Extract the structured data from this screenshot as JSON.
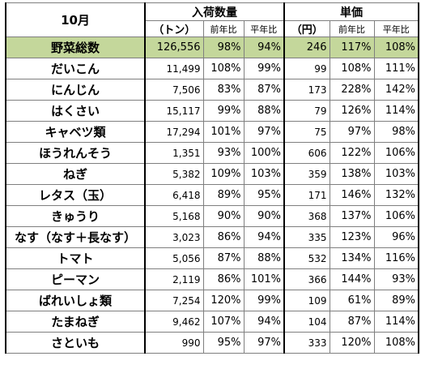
{
  "header": {
    "month": "10月",
    "arrivals_label": "入荷数量",
    "arrivals_unit": "（トン）",
    "price_label": "単価",
    "price_unit": "（円）",
    "yoy_label": "前年比",
    "avg_label": "平年比"
  },
  "rows": [
    {
      "name": "野菜総数",
      "qty": "126,556",
      "qty_yoy": "98%",
      "qty_avg": "94%",
      "price": "246",
      "price_yoy": "117%",
      "price_avg": "108%"
    },
    {
      "name": "だいこん",
      "qty": "11,499",
      "qty_yoy": "108%",
      "qty_avg": "99%",
      "price": "99",
      "price_yoy": "108%",
      "price_avg": "111%"
    },
    {
      "name": "にんじん",
      "qty": "7,506",
      "qty_yoy": "83%",
      "qty_avg": "87%",
      "price": "173",
      "price_yoy": "228%",
      "price_avg": "142%"
    },
    {
      "name": "はくさい",
      "qty": "15,117",
      "qty_yoy": "99%",
      "qty_avg": "88%",
      "price": "79",
      "price_yoy": "126%",
      "price_avg": "114%"
    },
    {
      "name": "キャベツ類",
      "qty": "17,294",
      "qty_yoy": "101%",
      "qty_avg": "97%",
      "price": "75",
      "price_yoy": "97%",
      "price_avg": "98%"
    },
    {
      "name": "ほうれんそう",
      "qty": "1,351",
      "qty_yoy": "93%",
      "qty_avg": "100%",
      "price": "606",
      "price_yoy": "122%",
      "price_avg": "106%"
    },
    {
      "name": "ねぎ",
      "qty": "5,382",
      "qty_yoy": "109%",
      "qty_avg": "103%",
      "price": "359",
      "price_yoy": "138%",
      "price_avg": "103%"
    },
    {
      "name": "レタス（玉）",
      "qty": "6,418",
      "qty_yoy": "89%",
      "qty_avg": "95%",
      "price": "171",
      "price_yoy": "146%",
      "price_avg": "132%"
    },
    {
      "name": "きゅうり",
      "qty": "5,168",
      "qty_yoy": "90%",
      "qty_avg": "90%",
      "price": "368",
      "price_yoy": "137%",
      "price_avg": "106%"
    },
    {
      "name": "なす（なす＋長なす）",
      "qty": "3,023",
      "qty_yoy": "86%",
      "qty_avg": "94%",
      "price": "335",
      "price_yoy": "123%",
      "price_avg": "96%"
    },
    {
      "name": "トマト",
      "qty": "5,056",
      "qty_yoy": "87%",
      "qty_avg": "88%",
      "price": "532",
      "price_yoy": "134%",
      "price_avg": "116%"
    },
    {
      "name": "ピーマン",
      "qty": "2,119",
      "qty_yoy": "86%",
      "qty_avg": "101%",
      "price": "366",
      "price_yoy": "144%",
      "price_avg": "93%"
    },
    {
      "name": "ばれいしょ類",
      "qty": "7,254",
      "qty_yoy": "120%",
      "qty_avg": "99%",
      "price": "109",
      "price_yoy": "61%",
      "price_avg": "89%"
    },
    {
      "name": "たまねぎ",
      "qty": "9,462",
      "qty_yoy": "107%",
      "qty_avg": "94%",
      "price": "104",
      "price_yoy": "87%",
      "price_avg": "114%"
    },
    {
      "name": "さといも",
      "qty": "990",
      "qty_yoy": "95%",
      "qty_avg": "97%",
      "price": "333",
      "price_yoy": "120%",
      "price_avg": "108%"
    }
  ],
  "colors": {
    "total_row_bg": "#c4d79b",
    "grid_line": "#7f7f7f"
  }
}
